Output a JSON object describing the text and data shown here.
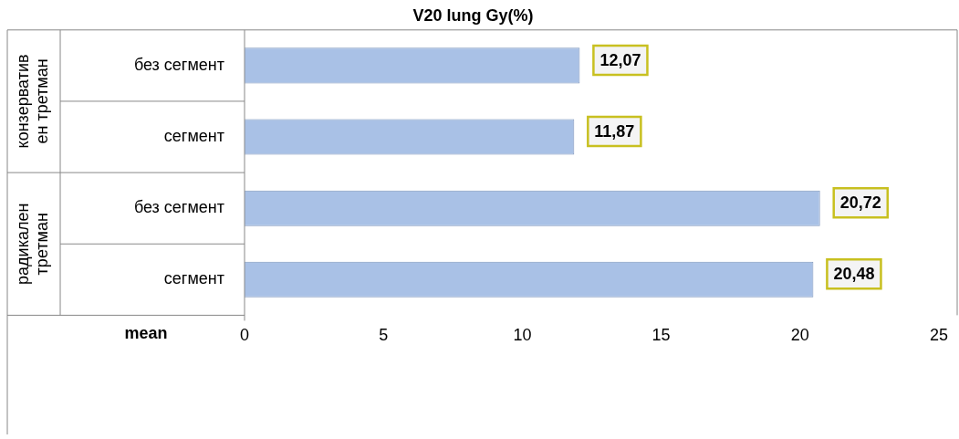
{
  "chart_data": {
    "type": "bar",
    "orientation": "horizontal",
    "title": "V20 lung Gy(%)",
    "xlabel": "mean",
    "categories": [
      "без сегмент",
      "сегмент",
      "без сегмент",
      "сегмент"
    ],
    "values": [
      12.07,
      11.87,
      20.72,
      20.48
    ],
    "color": "#a9c1e6",
    "value_labels": [
      "12,07",
      "11,87",
      "20,72",
      "20,48"
    ],
    "xlim": [
      0,
      25
    ],
    "xticks": [
      0,
      5,
      10,
      15,
      20,
      25
    ],
    "grid": false,
    "legend": false,
    "annotations": [
      "конзервативен третман",
      "радикален третман"
    ]
  }
}
